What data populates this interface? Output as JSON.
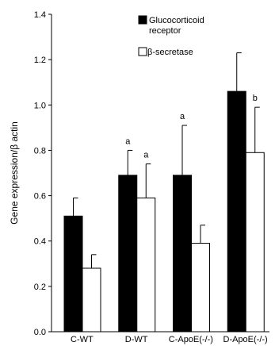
{
  "chart_data": {
    "type": "bar",
    "title": "",
    "xlabel": "",
    "ylabel": "Gene expression/β actin",
    "ylim": [
      0,
      1.4
    ],
    "yticks": [
      "0.0",
      "0.2",
      "0.4",
      "0.6",
      "0.8",
      "1.0",
      "1.2",
      "1.4"
    ],
    "categories": [
      "C-WT",
      "D-WT",
      "C-ApoE(-/-)",
      "D-ApoE(-/-)"
    ],
    "legend": {
      "placement": "top"
    },
    "series": [
      {
        "name": "Glucocorticoid receptor",
        "color": "#000000",
        "values": [
          0.51,
          0.69,
          0.69,
          1.06
        ],
        "errors": [
          0.08,
          0.11,
          0.22,
          0.17
        ],
        "annotations": [
          "",
          "a",
          "a",
          ""
        ]
      },
      {
        "name": "β-secretase",
        "color": "#ffffff",
        "values": [
          0.28,
          0.59,
          0.39,
          0.79
        ],
        "errors": [
          0.06,
          0.15,
          0.08,
          0.2
        ],
        "annotations": [
          "",
          "a",
          "",
          "b"
        ]
      }
    ]
  }
}
